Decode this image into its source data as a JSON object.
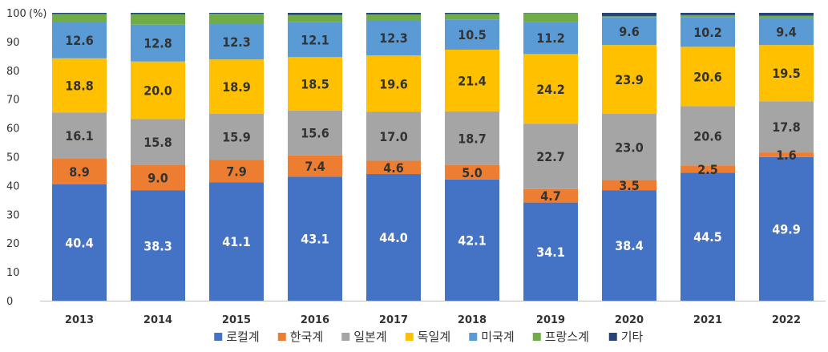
{
  "chart_data": {
    "type": "bar",
    "stacked": true,
    "y_unit": "(%)",
    "ylim": [
      0,
      100
    ],
    "yticks": [
      0,
      10,
      20,
      30,
      40,
      50,
      60,
      70,
      80,
      90,
      100
    ],
    "categories": [
      "2013",
      "2014",
      "2015",
      "2016",
      "2017",
      "2018",
      "2019",
      "2020",
      "2021",
      "2022"
    ],
    "series": [
      {
        "name": "로컬계",
        "color": "#4472C4",
        "label_color": "#ffffff",
        "values": [
          40.4,
          38.3,
          41.1,
          43.1,
          44.0,
          42.1,
          34.1,
          38.4,
          44.5,
          49.9
        ]
      },
      {
        "name": "한국계",
        "color": "#ED7D31",
        "label_color": "#333333",
        "values": [
          8.9,
          9.0,
          7.9,
          7.4,
          4.6,
          5.0,
          4.7,
          3.5,
          2.5,
          1.6
        ]
      },
      {
        "name": "일본계",
        "color": "#A5A5A5",
        "label_color": "#333333",
        "values": [
          16.1,
          15.8,
          15.9,
          15.6,
          17.0,
          18.7,
          22.7,
          23.0,
          20.6,
          17.8
        ]
      },
      {
        "name": "독일계",
        "color": "#FFC000",
        "label_color": "#333333",
        "values": [
          18.8,
          20.0,
          18.9,
          18.5,
          19.6,
          21.4,
          24.2,
          23.9,
          20.6,
          19.5
        ]
      },
      {
        "name": "미국계",
        "color": "#5B9BD5",
        "label_color": "#333333",
        "values": [
          12.6,
          12.8,
          12.3,
          12.1,
          12.3,
          10.5,
          11.2,
          9.6,
          10.2,
          9.4
        ]
      },
      {
        "name": "프랑스계",
        "color": "#70AD47",
        "label_color": "#333333",
        "values": [
          2.8,
          3.6,
          3.6,
          2.6,
          1.9,
          1.9,
          3.0,
          0.4,
          0.8,
          0.8
        ]
      },
      {
        "name": "기타",
        "color": "#264478",
        "label_color": "#333333",
        "values": [
          0.4,
          0.5,
          0.3,
          0.7,
          0.6,
          0.4,
          0.1,
          1.2,
          0.8,
          1.0
        ]
      }
    ],
    "data_labels": [
      [
        true,
        true,
        true,
        true,
        true,
        true,
        true,
        true,
        true,
        true
      ],
      [
        true,
        true,
        true,
        true,
        true,
        true,
        true,
        true,
        true,
        true
      ],
      [
        true,
        true,
        true,
        true,
        true,
        true,
        true,
        true,
        true,
        true
      ],
      [
        true,
        true,
        true,
        true,
        true,
        true,
        true,
        true,
        true,
        true
      ],
      [
        true,
        true,
        true,
        true,
        true,
        true,
        true,
        true,
        true,
        true
      ],
      [
        false,
        false,
        false,
        false,
        false,
        false,
        false,
        false,
        false,
        false
      ],
      [
        false,
        false,
        false,
        false,
        false,
        false,
        false,
        false,
        false,
        false
      ]
    ],
    "legend_position": "bottom"
  }
}
